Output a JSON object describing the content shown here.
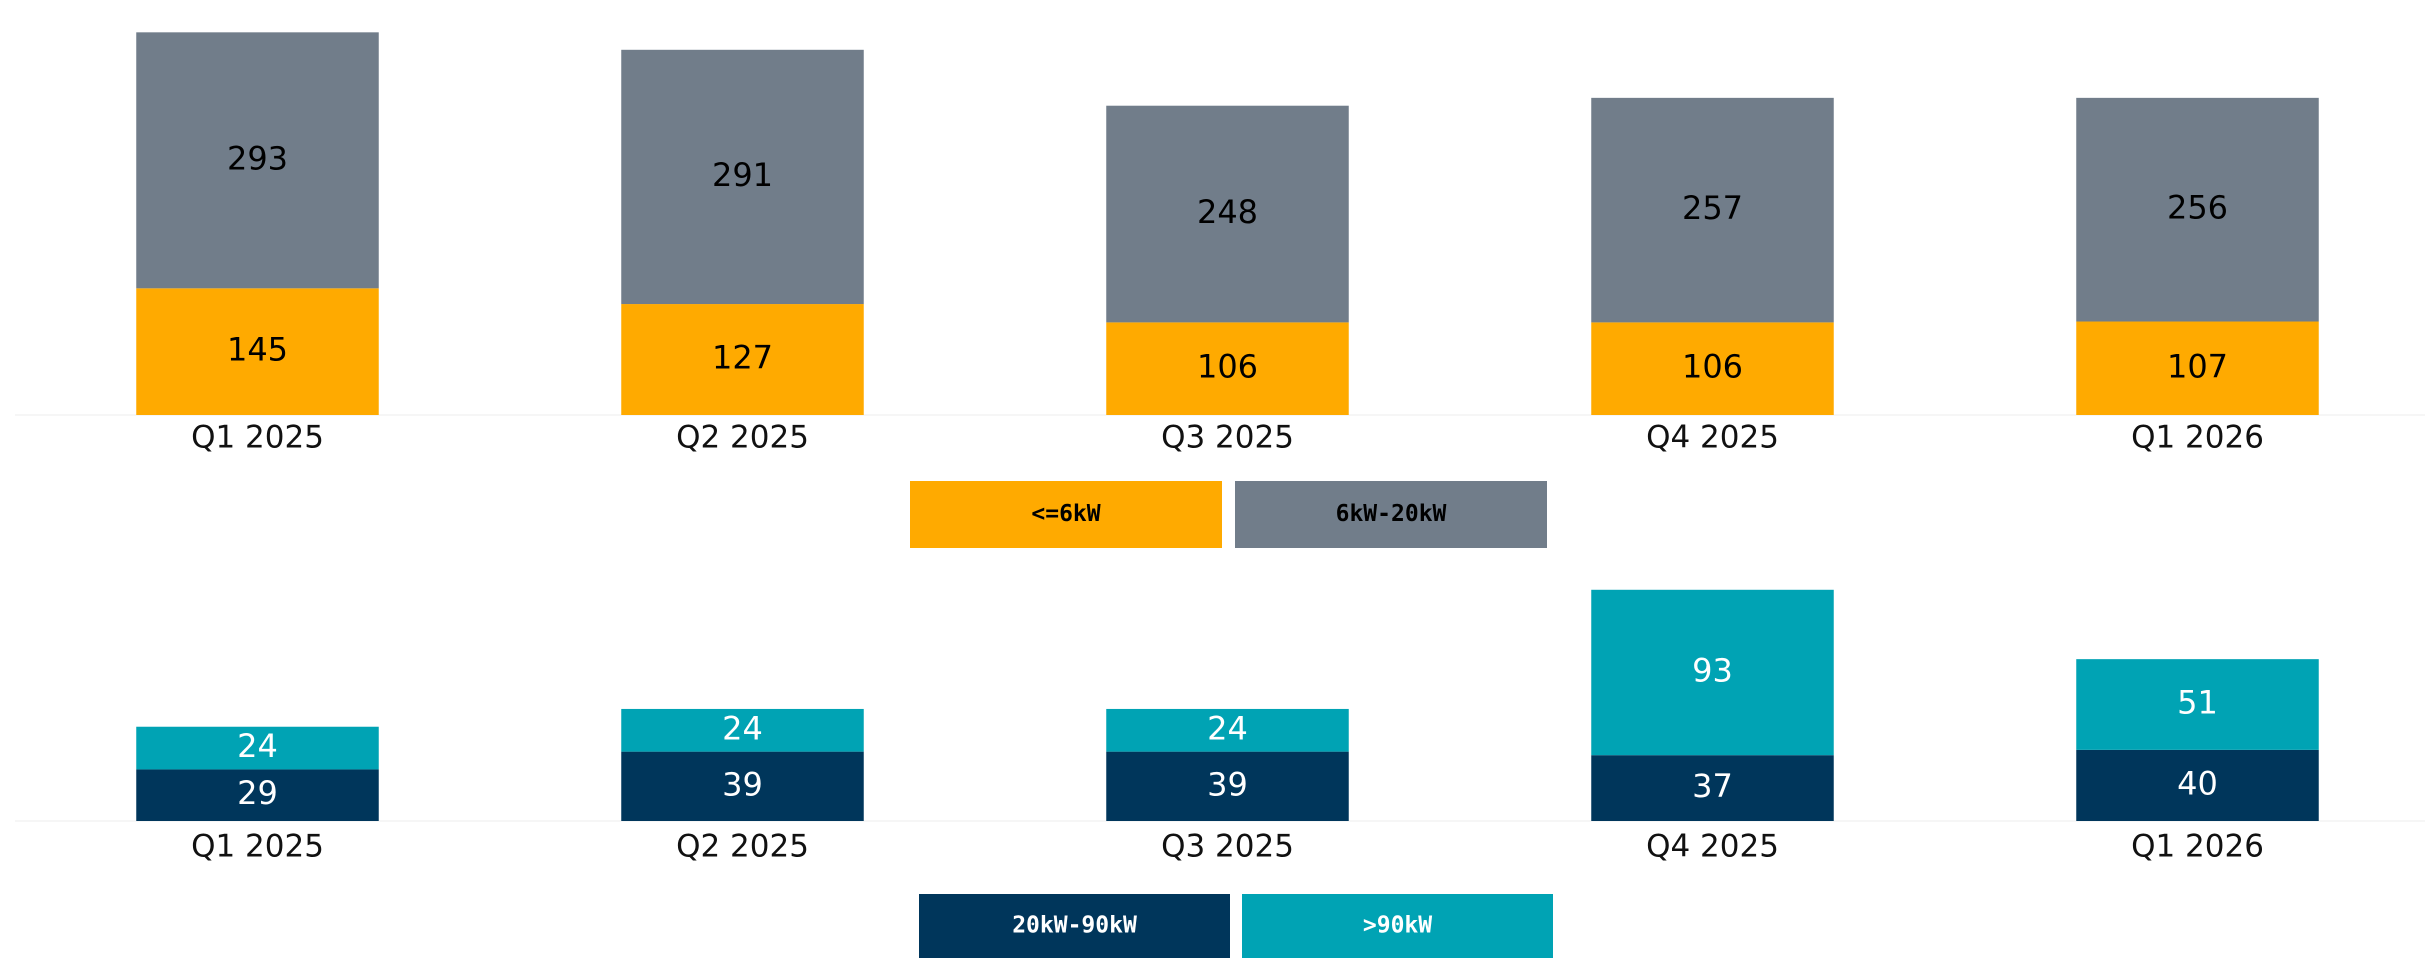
{
  "chart_data": [
    {
      "type": "stacked_bar",
      "categories": [
        "Q1 2025",
        "Q2 2025",
        "Q3 2025",
        "Q4 2025",
        "Q1 2026"
      ],
      "series": [
        {
          "name": "<=6kW",
          "color": "#ffaa00",
          "values": [
            145,
            127,
            106,
            106,
            107
          ]
        },
        {
          "name": "6kW-20kW",
          "color": "#717d8a",
          "values": [
            293,
            291,
            248,
            257,
            256
          ]
        }
      ],
      "ylim": [
        0,
        475
      ]
    },
    {
      "type": "stacked_bar",
      "categories": [
        "Q1 2025",
        "Q2 2025",
        "Q3 2025",
        "Q4 2025",
        "Q1 2026"
      ],
      "series": [
        {
          "name": "20kW-90kW",
          "color": "#00365b",
          "values": [
            29,
            39,
            39,
            37,
            40
          ]
        },
        {
          "name": ">90kW",
          "color": "#00a3b4",
          "values": [
            24,
            24,
            24,
            93,
            51
          ]
        }
      ],
      "ylim": [
        0,
        140
      ]
    }
  ]
}
